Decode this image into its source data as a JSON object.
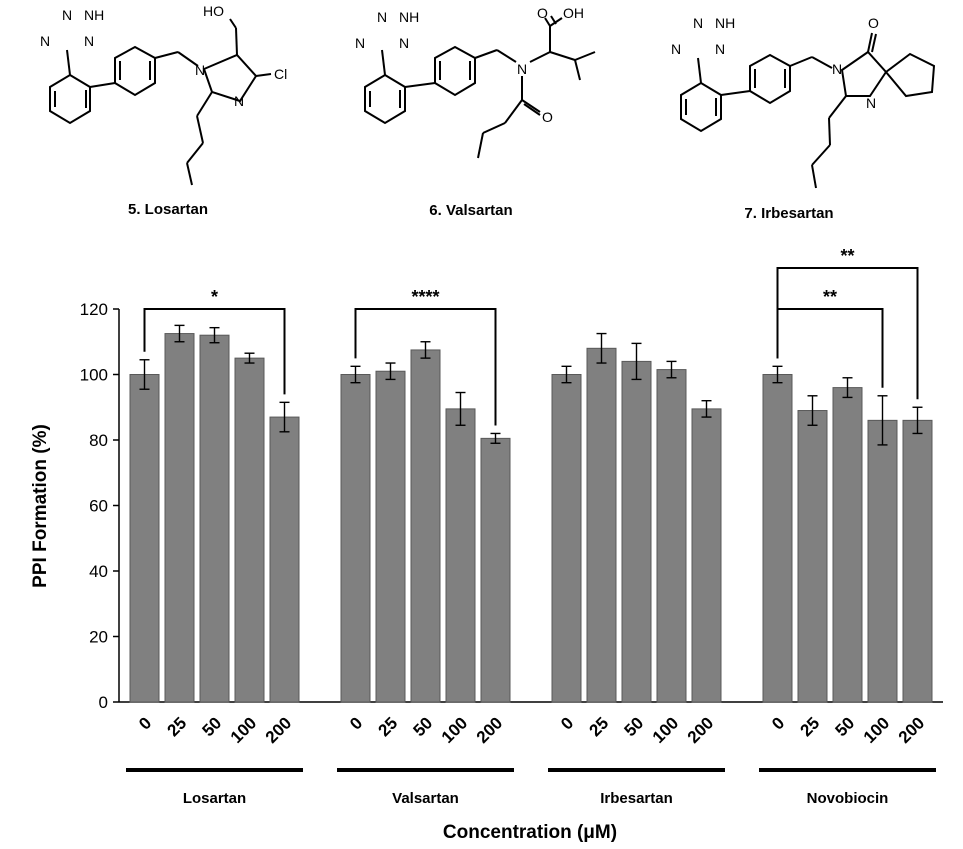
{
  "structures": [
    {
      "caption": "5. Losartan",
      "atoms": [
        "N",
        "N",
        "NH",
        "N",
        "HO",
        "N",
        "Cl",
        "N"
      ]
    },
    {
      "caption": "6. Valsartan",
      "atoms": [
        "N",
        "N",
        "NH",
        "N",
        "O",
        "OH",
        "N",
        "O"
      ]
    },
    {
      "caption": "7. Irbesartan",
      "atoms": [
        "N",
        "N",
        "NH",
        "N",
        "O",
        "N",
        "N"
      ]
    }
  ],
  "chart_data": {
    "type": "bar",
    "title": "",
    "ylabel": "PPI Formation (%)",
    "xlabel": "Concentration (μM)",
    "ylim": [
      0,
      120
    ],
    "yticks": [
      0,
      20,
      40,
      60,
      80,
      100,
      120
    ],
    "grid": false,
    "bar_color": "#808080",
    "groups": [
      {
        "name": "Losartan",
        "categories": [
          "0",
          "25",
          "50",
          "100",
          "200"
        ],
        "values": [
          100,
          112.5,
          112,
          105,
          87
        ],
        "errors": [
          4.5,
          2.5,
          2.3,
          1.5,
          4.5
        ]
      },
      {
        "name": "Valsartan",
        "categories": [
          "0",
          "25",
          "50",
          "100",
          "200"
        ],
        "values": [
          100,
          101,
          107.5,
          89.5,
          80.5
        ],
        "errors": [
          2.5,
          2.5,
          2.5,
          5,
          1.5
        ]
      },
      {
        "name": "Irbesartan",
        "categories": [
          "0",
          "25",
          "50",
          "100",
          "200"
        ],
        "values": [
          100,
          108,
          104,
          101.5,
          89.5
        ],
        "errors": [
          2.5,
          4.5,
          5.5,
          2.5,
          2.5
        ]
      },
      {
        "name": "Novobiocin",
        "categories": [
          "0",
          "25",
          "50",
          "100",
          "200"
        ],
        "values": [
          100,
          89,
          96,
          86,
          86
        ],
        "errors": [
          2.5,
          4.5,
          3,
          7.5,
          4
        ]
      }
    ],
    "significance": [
      {
        "group": 0,
        "from": 0,
        "to": 4,
        "label": "*"
      },
      {
        "group": 1,
        "from": 0,
        "to": 4,
        "label": "****"
      },
      {
        "group": 3,
        "from": 0,
        "to": 3,
        "label": "**"
      },
      {
        "group": 3,
        "from": 0,
        "to": 4,
        "label": "**"
      }
    ]
  }
}
